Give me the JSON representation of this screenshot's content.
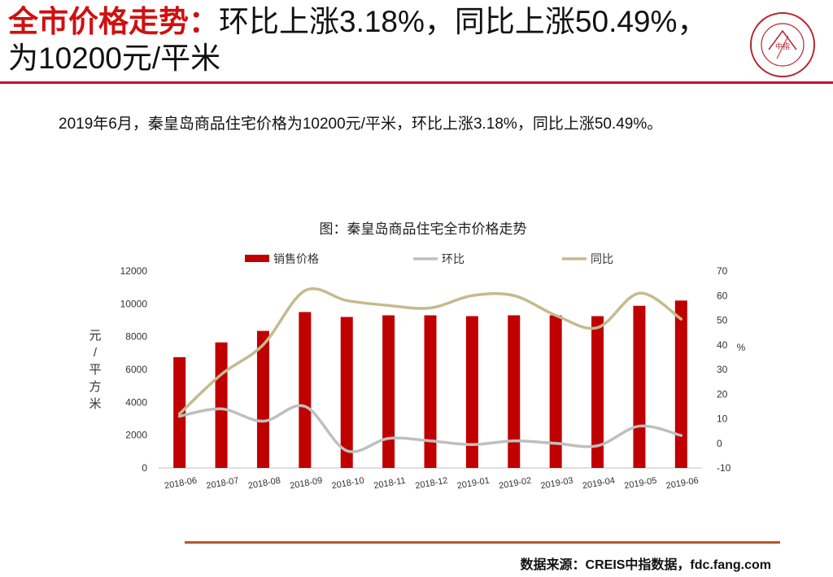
{
  "header": {
    "title_accent": "全市价格走势：",
    "title_rest": "环比上涨3.18%，同比上涨50.49%，为10200元/平米",
    "colors": {
      "accent": "#d01010",
      "rule": "#c8102e"
    }
  },
  "logo": {
    "icon": "china-index-academy-seal-icon",
    "inner_text": "中指",
    "color": "#b8232f"
  },
  "summary": "2019年6月，秦皇岛商品住宅价格为10200元/平米，环比上涨3.18%，同比上涨50.49%。",
  "chart_data": {
    "type": "bar",
    "title": "图：秦皇岛商品住宅全市价格走势",
    "categories": [
      "2018-06",
      "2018-07",
      "2018-08",
      "2018-09",
      "2018-10",
      "2018-11",
      "2018-12",
      "2019-01",
      "2019-02",
      "2019-03",
      "2019-04",
      "2019-05",
      "2019-06"
    ],
    "series": [
      {
        "name": "销售价格",
        "chart": "bar",
        "axis": "left",
        "color": "#c00000",
        "values": [
          6750,
          7650,
          8350,
          9500,
          9200,
          9300,
          9300,
          9250,
          9300,
          9300,
          9250,
          9880,
          10200
        ]
      },
      {
        "name": "环比",
        "chart": "line",
        "axis": "right",
        "color": "#bfbfbf",
        "values": [
          11,
          14,
          9,
          15,
          -3,
          2,
          1,
          -0.5,
          1,
          0,
          -1,
          7,
          3.18
        ]
      },
      {
        "name": "同比",
        "chart": "line",
        "axis": "right",
        "color": "#c4bb8d",
        "values": [
          12,
          28,
          40,
          62,
          58,
          56,
          55,
          60,
          60,
          52,
          47,
          61,
          50.49
        ]
      }
    ],
    "ylabel_left": "元/平方米",
    "ylabel_right": "%",
    "ylim_left": [
      0,
      12000
    ],
    "yticks_left": [
      0,
      2000,
      4000,
      6000,
      8000,
      10000,
      12000
    ],
    "ylim_right": [
      -10,
      70
    ],
    "yticks_right": [
      -10,
      0,
      10,
      20,
      30,
      40,
      50,
      60,
      70
    ],
    "grid": false,
    "legend": "top-center"
  },
  "footer": {
    "source": "数据来源：CREIS中指数据，fdc.fang.com",
    "rule_color": "#b5562a"
  }
}
